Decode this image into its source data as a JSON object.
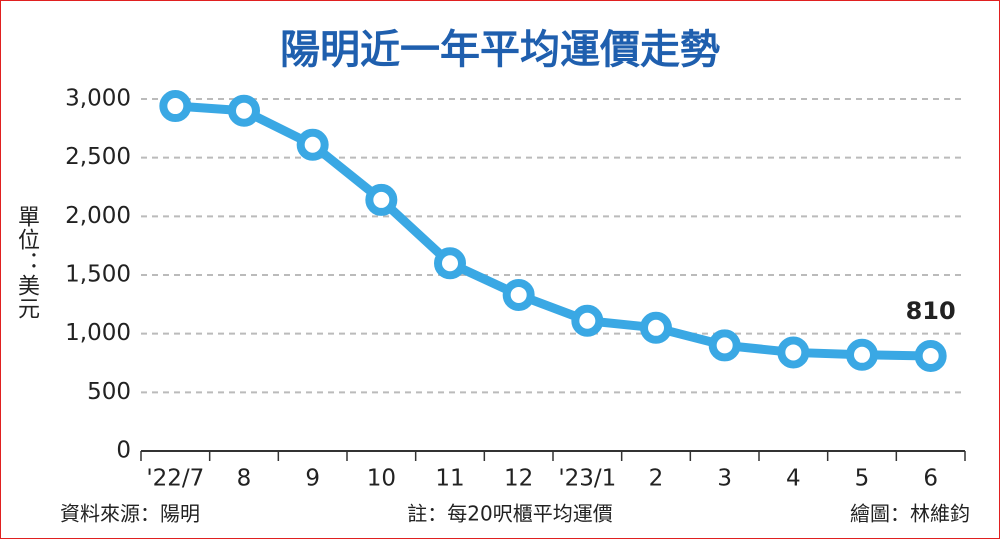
{
  "chart_data": {
    "type": "line",
    "title": "陽明近一年平均運價走勢",
    "y_label": "單位：美元",
    "source": "資料來源：陽明",
    "note": "註：每20呎櫃平均運價",
    "credit": "繪圖：林維鈞",
    "categories": [
      "'22/7",
      "8",
      "9",
      "10",
      "11",
      "12",
      "'23/1",
      "2",
      "3",
      "4",
      "5",
      "6"
    ],
    "series": [
      {
        "name": "平均運價",
        "color": "#3aa8e4",
        "values": [
          2940,
          2900,
          2610,
          2140,
          1600,
          1330,
          1110,
          1050,
          900,
          840,
          820,
          810
        ]
      }
    ],
    "ylim": [
      0,
      3000
    ],
    "yticks": [
      0,
      500,
      {
        "value": 1000,
        "label": "1,000"
      },
      {
        "value": 1500,
        "label": "1,500"
      },
      {
        "value": 2000,
        "label": "2,000"
      },
      {
        "value": 2500,
        "label": "2,500"
      },
      {
        "value": 3000,
        "label": "3,000"
      }
    ],
    "grid": true
  }
}
